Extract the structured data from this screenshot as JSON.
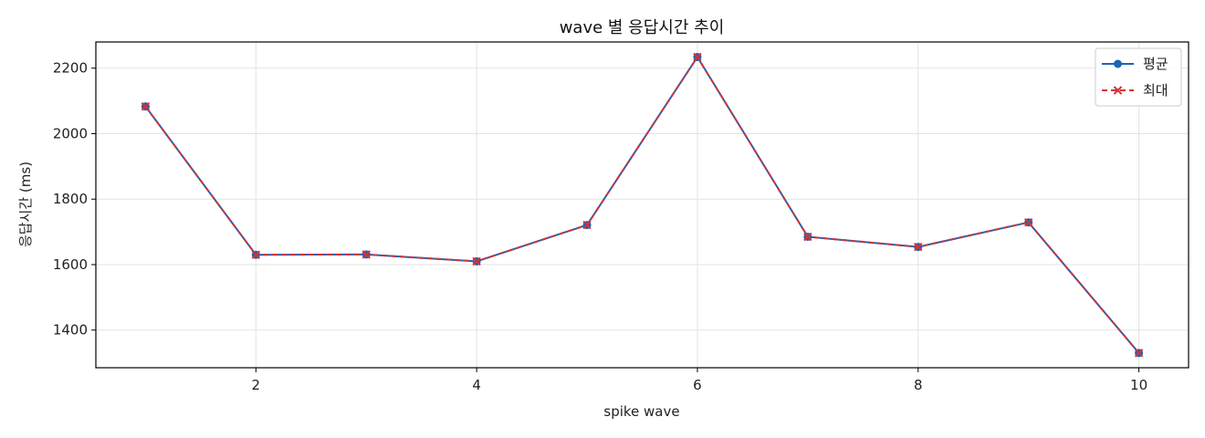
{
  "chart_data": {
    "type": "line",
    "title": "wave 별 응답시간 추이",
    "xlabel": "spike wave",
    "ylabel": "응답시간 (ms)",
    "x": [
      1,
      2,
      3,
      4,
      5,
      6,
      7,
      8,
      9,
      10
    ],
    "xlim": [
      0.55,
      10.45
    ],
    "ylim": [
      1285,
      2280
    ],
    "xticks": [
      2,
      4,
      6,
      8,
      10
    ],
    "yticks": [
      1400,
      1600,
      1800,
      2000,
      2200
    ],
    "grid": true,
    "legend_position": "top-right",
    "series": [
      {
        "name": "평균",
        "color": "#1f63b8",
        "marker": "circle",
        "line_style": "solid",
        "values": [
          2083,
          1630,
          1631,
          1610,
          1721,
          2234,
          1685,
          1654,
          1729,
          1330
        ]
      },
      {
        "name": "최대",
        "color": "#d03434",
        "marker": "x",
        "line_style": "dashed",
        "values": [
          2083,
          1630,
          1631,
          1610,
          1721,
          2234,
          1685,
          1654,
          1729,
          1330
        ]
      }
    ]
  }
}
